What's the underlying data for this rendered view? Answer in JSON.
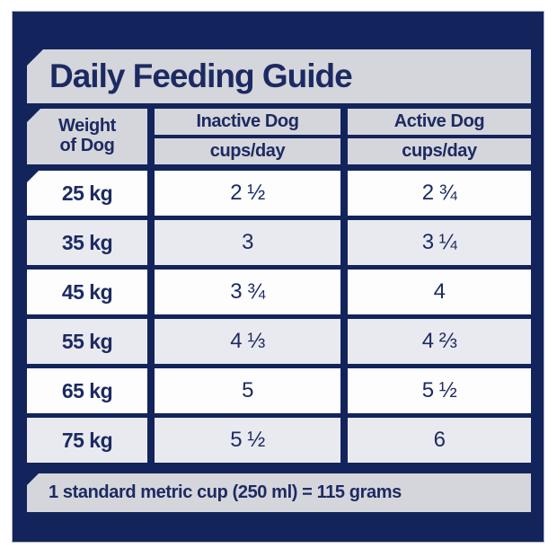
{
  "colors": {
    "panel_navy": "#13245c",
    "bar_gray": "#d4d6db",
    "row_light_gray": "#e9eaef",
    "row_white": "#fdfdfe",
    "text_navy": "#1d2a62"
  },
  "title": "Daily Feeding Guide",
  "table": {
    "weight_header": {
      "line1": "Weight",
      "line2": "of Dog"
    },
    "columns": [
      {
        "label": "Inactive Dog",
        "sublabel": "cups/day"
      },
      {
        "label": "Active Dog",
        "sublabel": "cups/day"
      }
    ],
    "rows": [
      {
        "weight": "25 kg",
        "inactive": "2 ½",
        "active": "2 ¾"
      },
      {
        "weight": "35 kg",
        "inactive": "3",
        "active": "3 ¼"
      },
      {
        "weight": "45 kg",
        "inactive": "3 ¾",
        "active": "4"
      },
      {
        "weight": "55 kg",
        "inactive": "4 ⅓",
        "active": "4 ⅔"
      },
      {
        "weight": "65 kg",
        "inactive": "5",
        "active": "5 ½"
      },
      {
        "weight": "75 kg",
        "inactive": "5 ½",
        "active": "6"
      }
    ]
  },
  "footer_note": "1 standard metric cup (250 ml) = 115 grams"
}
